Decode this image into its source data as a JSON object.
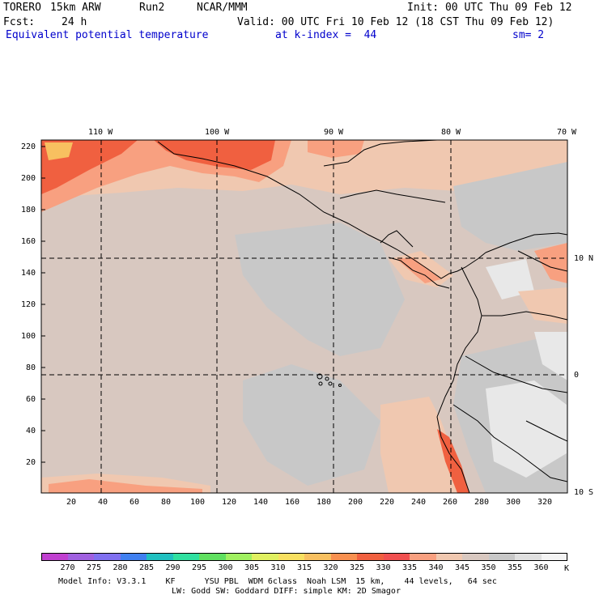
{
  "header": {
    "model": "TORERO",
    "resolution": "15km ARW",
    "run": "Run2",
    "org": "NCAR/MMM",
    "init": "Init: 00 UTC Thu 09 Feb 12",
    "fcst_label": "Fcst:",
    "fcst_value": "24 h",
    "valid": "Valid: 00 UTC Fri 10 Feb 12 (18 CST Thu 09 Feb 12)",
    "field": "Equivalent potential temperature",
    "level": "at k-index =  44",
    "smooth": "sm= 2"
  },
  "map": {
    "lon_labels": [
      "110 W",
      "100 W",
      "90 W",
      "80 W",
      "70 W"
    ],
    "lat_labels": [
      "10 N",
      "0",
      "10 S"
    ],
    "y_ticks": [
      "220",
      "200",
      "180",
      "160",
      "140",
      "120",
      "100",
      "80",
      "60",
      "40",
      "20"
    ],
    "x_ticks": [
      "20",
      "40",
      "60",
      "80",
      "100",
      "120",
      "140",
      "160",
      "180",
      "200",
      "220",
      "240",
      "260",
      "280",
      "300",
      "320"
    ]
  },
  "colorbar": {
    "labels": [
      "270",
      "275",
      "280",
      "285",
      "290",
      "295",
      "300",
      "305",
      "310",
      "315",
      "320",
      "325",
      "330",
      "335",
      "340",
      "345",
      "350",
      "355",
      "360"
    ],
    "unit": "K",
    "colors": [
      "#c040d0",
      "#a060e0",
      "#8070f0",
      "#4080f0",
      "#20c0c0",
      "#30e0a0",
      "#60e060",
      "#a0f060",
      "#e0f060",
      "#f8e060",
      "#f8c060",
      "#f89050",
      "#f06040",
      "#f05050",
      "#f8a080",
      "#f0c8b0",
      "#d8c8c0",
      "#c8c8c8",
      "#e0e0e0",
      "#f4f4f4"
    ]
  },
  "footer": {
    "line1": "Model Info: V3.3.1    KF      YSU PBL  WDM 6class  Noah LSM  15 km,    44 levels,   64 sec",
    "line2": "LW: Godd SW: Goddard DIFF: simple KM: 2D Smagor"
  }
}
